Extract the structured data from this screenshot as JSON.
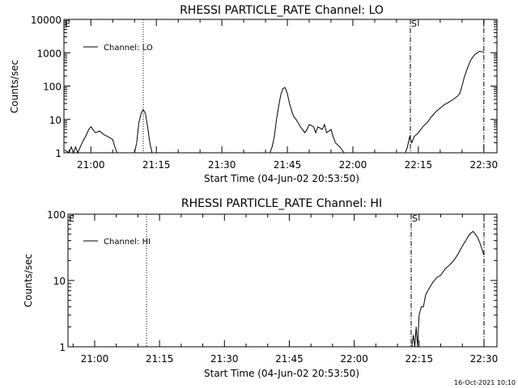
{
  "footer": {
    "timestamp": "16-Oct-2021 10:10"
  },
  "chart_data": [
    {
      "type": "line",
      "title": "RHESSI PARTICLE_RATE Channel: LO",
      "xlabel": "Start Time (04-Jun-02 20:53:50)",
      "ylabel": "Counts/sec",
      "yscale": "log",
      "xlim": [
        "20:53:50",
        "22:33:00"
      ],
      "ylim": [
        1,
        10000
      ],
      "xticks": [
        "21:00",
        "21:15",
        "21:30",
        "21:45",
        "22:00",
        "22:15",
        "22:30"
      ],
      "yticks": [
        "1",
        "10",
        "100",
        "1000",
        "10000"
      ],
      "legend": {
        "label": "Channel: LO",
        "placement": "top-left"
      },
      "markers": [
        {
          "label": "E",
          "time": "20:53:50",
          "style": "dashdot"
        },
        {
          "time": "21:12:00",
          "style": "dotted"
        },
        {
          "label": "S",
          "time": "22:13:10",
          "style": "dashdot"
        },
        {
          "time": "22:30:00",
          "style": "dashdot"
        }
      ],
      "series": [
        {
          "name": "Channel: LO",
          "points": [
            [
              "20:54:00",
              1.2
            ],
            [
              "20:55:00",
              1
            ],
            [
              "20:55:30",
              1.5
            ],
            [
              "20:56:00",
              1
            ],
            [
              "20:56:30",
              1.5
            ],
            [
              "20:57:00",
              1
            ],
            [
              "20:58:00",
              2
            ],
            [
              "20:59:00",
              3.5
            ],
            [
              "20:59:30",
              5
            ],
            [
              "21:00:00",
              6
            ],
            [
              "21:00:30",
              5
            ],
            [
              "21:01:00",
              4
            ],
            [
              "21:02:00",
              4.5
            ],
            [
              "21:03:00",
              3.5
            ],
            [
              "21:04:00",
              3
            ],
            [
              "21:05:00",
              2.5
            ],
            [
              "21:05:30",
              1.5
            ],
            [
              "21:06:00",
              1
            ],
            [
              "21:10:00",
              1
            ],
            [
              "21:10:30",
              2
            ],
            [
              "21:11:00",
              8
            ],
            [
              "21:11:30",
              15
            ],
            [
              "21:12:00",
              20
            ],
            [
              "21:12:30",
              15
            ],
            [
              "21:13:00",
              6
            ],
            [
              "21:13:30",
              2
            ],
            [
              "21:14:00",
              1
            ],
            [
              "21:41:00",
              1
            ],
            [
              "21:41:30",
              1.5
            ],
            [
              "21:42:00",
              3
            ],
            [
              "21:42:30",
              10
            ],
            [
              "21:43:00",
              25
            ],
            [
              "21:43:30",
              55
            ],
            [
              "21:44:00",
              85
            ],
            [
              "21:44:30",
              90
            ],
            [
              "21:45:00",
              60
            ],
            [
              "21:45:30",
              30
            ],
            [
              "21:46:00",
              18
            ],
            [
              "21:46:30",
              12
            ],
            [
              "21:47:00",
              10
            ],
            [
              "21:48:00",
              6
            ],
            [
              "21:49:00",
              4
            ],
            [
              "21:49:30",
              5
            ],
            [
              "21:50:00",
              7
            ],
            [
              "21:51:00",
              6
            ],
            [
              "21:51:30",
              4
            ],
            [
              "21:52:00",
              6
            ],
            [
              "21:53:00",
              5
            ],
            [
              "21:53:30",
              7
            ],
            [
              "21:54:00",
              4
            ],
            [
              "21:55:00",
              5
            ],
            [
              "21:55:30",
              3
            ],
            [
              "21:56:00",
              2
            ],
            [
              "21:57:00",
              1.5
            ],
            [
              "21:58:00",
              1
            ],
            [
              "22:12:00",
              1
            ],
            [
              "22:12:30",
              1.5
            ],
            [
              "22:13:00",
              3
            ],
            [
              "22:13:30",
              2
            ],
            [
              "22:14:00",
              3
            ],
            [
              "22:15:00",
              4
            ],
            [
              "22:16:00",
              6
            ],
            [
              "22:17:00",
              8
            ],
            [
              "22:18:00",
              12
            ],
            [
              "22:19:00",
              17
            ],
            [
              "22:20:00",
              22
            ],
            [
              "22:21:00",
              28
            ],
            [
              "22:22:00",
              33
            ],
            [
              "22:23:00",
              40
            ],
            [
              "22:24:00",
              50
            ],
            [
              "22:24:30",
              60
            ],
            [
              "22:25:00",
              100
            ],
            [
              "22:25:30",
              180
            ],
            [
              "22:26:00",
              280
            ],
            [
              "22:26:30",
              420
            ],
            [
              "22:27:00",
              600
            ],
            [
              "22:27:30",
              750
            ],
            [
              "22:28:00",
              900
            ],
            [
              "22:28:30",
              1000
            ],
            [
              "22:29:00",
              1100
            ],
            [
              "22:30:00",
              1050
            ]
          ]
        }
      ]
    },
    {
      "type": "line",
      "title": "RHESSI PARTICLE_RATE Channel: HI",
      "xlabel": "Start Time (04-Jun-02 20:53:50)",
      "ylabel": "Counts/sec",
      "yscale": "log",
      "xlim": [
        "20:53:50",
        "22:33:00"
      ],
      "ylim": [
        1,
        100
      ],
      "xticks": [
        "21:00",
        "21:15",
        "21:30",
        "21:45",
        "22:00",
        "22:15",
        "22:30"
      ],
      "yticks": [
        "1",
        "10",
        "100"
      ],
      "legend": {
        "label": "Channel: HI",
        "placement": "top-left"
      },
      "markers": [
        {
          "label": "E",
          "time": "20:53:50",
          "style": "dashdot"
        },
        {
          "time": "21:12:00",
          "style": "dotted"
        },
        {
          "label": "S",
          "time": "22:13:10",
          "style": "dashdot"
        },
        {
          "time": "22:30:00",
          "style": "dashdot"
        }
      ],
      "series": [
        {
          "name": "Channel: HI",
          "points": [
            [
              "22:13:20",
              1
            ],
            [
              "22:13:40",
              1.5
            ],
            [
              "22:14:00",
              1
            ],
            [
              "22:14:20",
              2
            ],
            [
              "22:14:40",
              1
            ],
            [
              "22:15:00",
              3
            ],
            [
              "22:15:30",
              4
            ],
            [
              "22:16:00",
              4
            ],
            [
              "22:16:30",
              6
            ],
            [
              "22:17:00",
              7
            ],
            [
              "22:18:00",
              9
            ],
            [
              "22:19:00",
              11
            ],
            [
              "22:20:00",
              12
            ],
            [
              "22:21:00",
              15
            ],
            [
              "22:22:00",
              17
            ],
            [
              "22:23:00",
              20
            ],
            [
              "22:24:00",
              25
            ],
            [
              "22:25:00",
              33
            ],
            [
              "22:26:00",
              42
            ],
            [
              "22:26:30",
              48
            ],
            [
              "22:27:00",
              52
            ],
            [
              "22:27:30",
              55
            ],
            [
              "22:28:00",
              50
            ],
            [
              "22:28:30",
              45
            ],
            [
              "22:29:00",
              38
            ],
            [
              "22:29:30",
              30
            ],
            [
              "22:30:00",
              24
            ]
          ]
        }
      ]
    }
  ]
}
